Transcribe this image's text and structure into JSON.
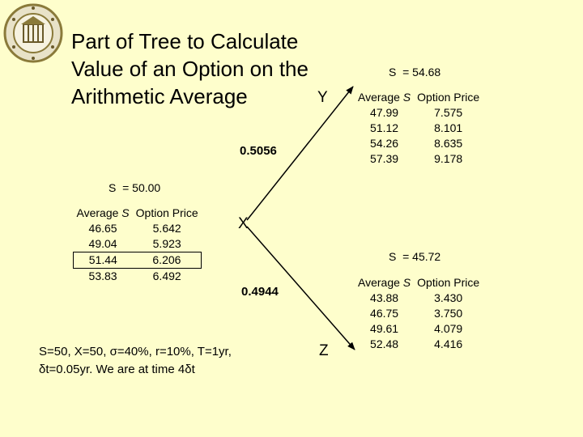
{
  "title_lines": [
    "Part of Tree to Calculate",
    "Value of an Option on the",
    "Arithmetic Average"
  ],
  "columns": {
    "avg_prefix": "Average",
    "avg_var": "S",
    "option_price": "Option Price"
  },
  "node_x": {
    "letter": "X",
    "price_label": "S  = 50.00",
    "rows": [
      [
        "46.65",
        "5.642"
      ],
      [
        "49.04",
        "5.923"
      ],
      [
        "51.44",
        "6.206"
      ],
      [
        "53.83",
        "6.492"
      ]
    ],
    "highlighted_row": 2
  },
  "node_y": {
    "letter": "Y",
    "price_label": "S  = 54.68",
    "probability": "0.5056",
    "rows": [
      [
        "47.99",
        "7.575"
      ],
      [
        "51.12",
        "8.101"
      ],
      [
        "54.26",
        "8.635"
      ],
      [
        "57.39",
        "9.178"
      ]
    ]
  },
  "node_z": {
    "letter": "Z",
    "price_label": "S  = 45.72",
    "probability": "0.4944",
    "rows": [
      [
        "43.88",
        "3.430"
      ],
      [
        "46.75",
        "3.750"
      ],
      [
        "49.61",
        "4.079"
      ],
      [
        "52.48",
        "4.416"
      ]
    ]
  },
  "parameters": {
    "line1": "S=50, X=50, σ=40%, r=10%, T=1yr,",
    "line2": "δt=0.05yr. We are at time 4δt"
  },
  "logo": {
    "name": "university-seal",
    "color": "#8a7a3a"
  }
}
